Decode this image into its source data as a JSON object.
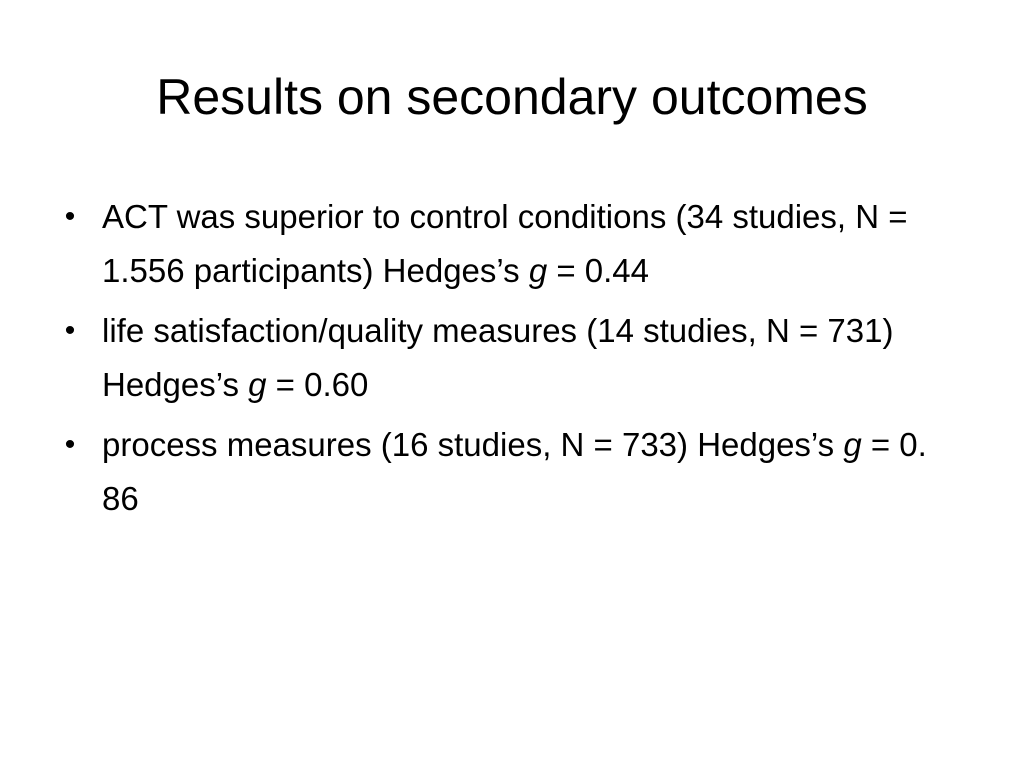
{
  "slide": {
    "title": "Results on secondary outcomes",
    "bullets": [
      {
        "bullet_symbol": "•",
        "text_before": "ACT was superior to control conditions (34 studies, N = 1.556 participants) Hedges’s ",
        "italic": "g",
        "text_after": " = 0.44"
      },
      {
        "bullet_symbol": "•",
        "text_before": "life satisfaction/quality measures (14 studies, N = 731) Hedges’s ",
        "italic": "g",
        "text_after": " = 0.60"
      },
      {
        "bullet_symbol": "•",
        "text_before": "process measures (16 studies, N = 733) Hedges’s ",
        "italic": "g",
        "text_after": " = 0. 86"
      }
    ]
  }
}
